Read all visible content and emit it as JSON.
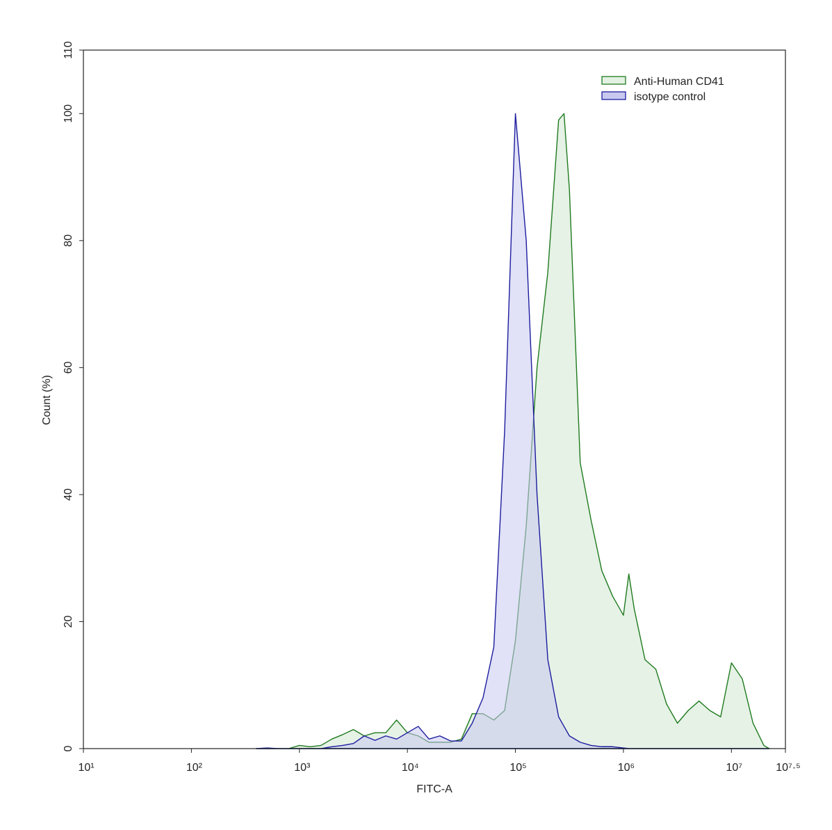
{
  "chart_data": {
    "type": "histogram-overlay",
    "xlabel": "FITC-A",
    "ylabel": "Count  (%)",
    "xscale": "log",
    "xlim": [
      10,
      31622777
    ],
    "xticks": [
      {
        "value": 10,
        "label": "10¹"
      },
      {
        "value": 100,
        "label": "10²"
      },
      {
        "value": 1000,
        "label": "10³"
      },
      {
        "value": 10000,
        "label": "10⁴"
      },
      {
        "value": 100000,
        "label": "10⁵"
      },
      {
        "value": 1000000,
        "label": "10⁶"
      },
      {
        "value": 10000000,
        "label": "10⁷"
      },
      {
        "value": 31622777,
        "label": "10⁷·⁵"
      }
    ],
    "ylim": [
      0,
      110
    ],
    "yticks": [
      0,
      20,
      40,
      60,
      80,
      100,
      110
    ],
    "legend": "upper right",
    "x": [
      398,
      501,
      631,
      794,
      1000,
      1259,
      1585,
      1995,
      2512,
      3162,
      3981,
      5012,
      6310,
      7943,
      10000,
      12589,
      15849,
      19953,
      25119,
      31623,
      39811,
      50119,
      63096,
      79433,
      100000,
      125893,
      158489,
      199526,
      251189,
      281838,
      316228,
      398107,
      501187,
      630957,
      794328,
      1000000,
      1122018,
      1258925,
      1584893,
      1995262,
      2511886,
      3162278,
      3981072,
      5011872,
      6309573,
      7943282,
      10000000,
      12589254,
      15848932,
      19952623,
      22387211
    ],
    "series": [
      {
        "name": "Anti-Human CD41",
        "color": "#1f7a1f",
        "fill": "#e3f1e3",
        "values": [
          0,
          0,
          0,
          0,
          0.5,
          0.3,
          0.5,
          1.5,
          2.2,
          3,
          2,
          2.5,
          2.5,
          4.5,
          2.5,
          2,
          1,
          1,
          1,
          1.5,
          5.5,
          5.5,
          4.5,
          6,
          17,
          35,
          60,
          75,
          99,
          100,
          88,
          45,
          36,
          28,
          24,
          21,
          27.5,
          22,
          14,
          12.5,
          7,
          4,
          6,
          7.5,
          6,
          5,
          13.5,
          11,
          4,
          0.5,
          0
        ]
      },
      {
        "name": "isotype control",
        "color": "#1c1c9e",
        "fill": "#c9c9f0",
        "values": [
          0,
          0.1,
          0,
          0,
          0,
          0,
          0,
          0.3,
          0.5,
          0.8,
          2,
          1.3,
          2,
          1.5,
          2.5,
          3.5,
          1.5,
          2,
          1.2,
          1.2,
          4,
          8,
          16,
          50,
          100,
          80,
          40,
          14,
          5,
          3.5,
          2,
          1,
          0.5,
          0.3,
          0.3,
          0.1,
          0,
          0,
          0,
          0,
          0,
          0,
          0,
          0,
          0,
          0,
          0,
          0,
          0,
          0,
          0
        ]
      }
    ]
  }
}
